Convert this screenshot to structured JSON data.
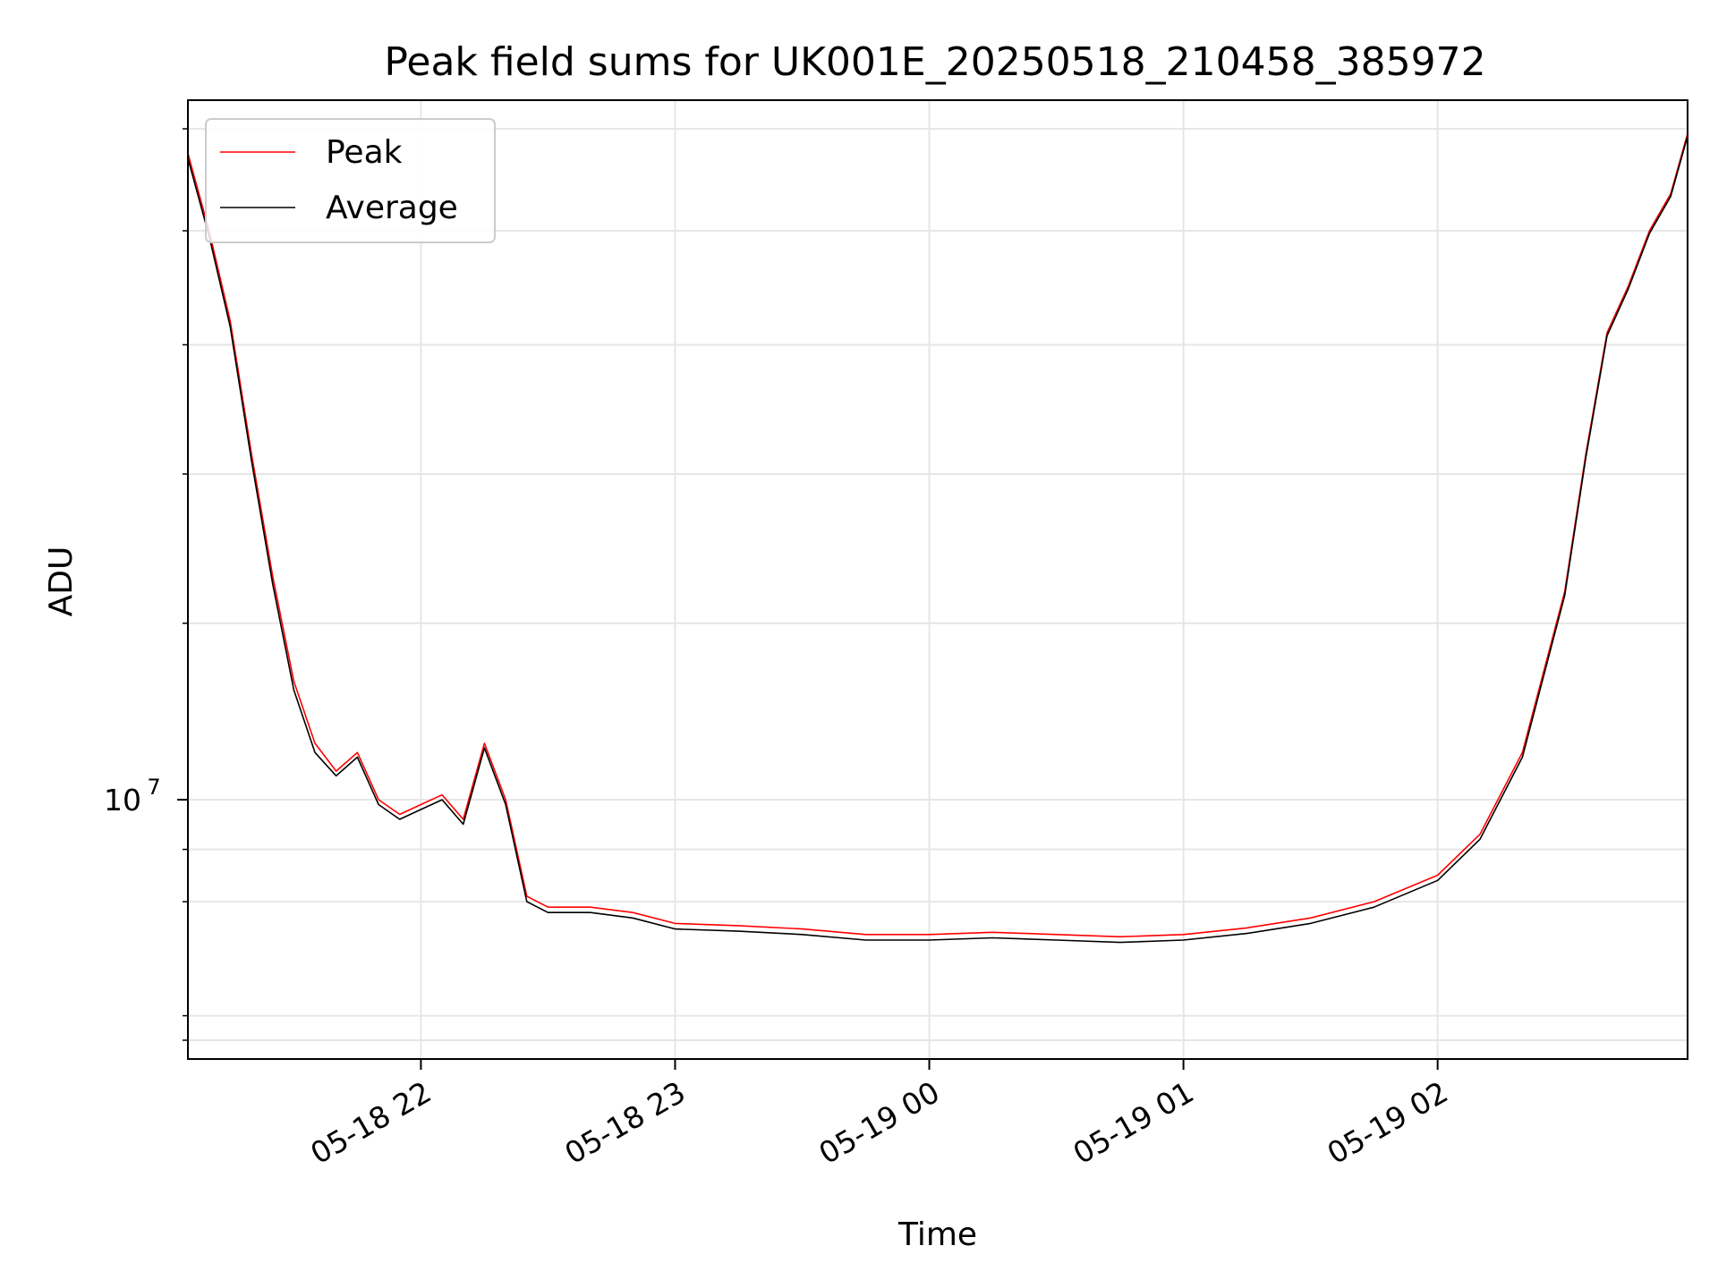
{
  "chart_data": {
    "type": "line",
    "title": "Peak field sums for UK001E_20250518_210458_385972",
    "xlabel": "Time",
    "ylabel": "ADU",
    "y_scale": "log",
    "grid": true,
    "legend_position": "top-left",
    "xlim": [
      "2025-05-18T21:05",
      "2025-05-19T02:59"
    ],
    "ylim": [
      7650000,
      20600000
    ],
    "x_ticks": [
      {
        "value": "2025-05-18T22:00",
        "label": "05-18 22"
      },
      {
        "value": "2025-05-18T23:00",
        "label": "05-18 23"
      },
      {
        "value": "2025-05-19T00:00",
        "label": "05-19 00"
      },
      {
        "value": "2025-05-19T01:00",
        "label": "05-19 01"
      },
      {
        "value": "2025-05-19T02:00",
        "label": "05-19 02"
      }
    ],
    "y_major_ticks": [
      {
        "value": 10000000,
        "base": "10",
        "exp": "7"
      }
    ],
    "y_minor_ticks": [
      7800000,
      8000000,
      9000000,
      9500000,
      12000000,
      14000000,
      16000000,
      18000000,
      20000000
    ],
    "series": [
      {
        "name": "Peak",
        "color": "#ff0000",
        "x": [
          "2025-05-18T21:05",
          "2025-05-18T21:10",
          "2025-05-18T21:15",
          "2025-05-18T21:20",
          "2025-05-18T21:25",
          "2025-05-18T21:30",
          "2025-05-18T21:35",
          "2025-05-18T21:40",
          "2025-05-18T21:45",
          "2025-05-18T21:50",
          "2025-05-18T21:55",
          "2025-05-18T22:00",
          "2025-05-18T22:05",
          "2025-05-18T22:10",
          "2025-05-18T22:15",
          "2025-05-18T22:20",
          "2025-05-18T22:25",
          "2025-05-18T22:30",
          "2025-05-18T22:40",
          "2025-05-18T22:50",
          "2025-05-18T23:00",
          "2025-05-18T23:15",
          "2025-05-18T23:30",
          "2025-05-18T23:45",
          "2025-05-19T00:00",
          "2025-05-19T00:15",
          "2025-05-19T00:30",
          "2025-05-19T00:45",
          "2025-05-19T01:00",
          "2025-05-19T01:15",
          "2025-05-19T01:30",
          "2025-05-19T01:45",
          "2025-05-19T02:00",
          "2025-05-19T02:10",
          "2025-05-19T02:20",
          "2025-05-19T02:30",
          "2025-05-19T02:35",
          "2025-05-19T02:40",
          "2025-05-19T02:45",
          "2025-05-19T02:50",
          "2025-05-19T02:55",
          "2025-05-19T02:59"
        ],
        "values": [
          19500000,
          18000000,
          16400000,
          14300000,
          12600000,
          11300000,
          10600000,
          10300000,
          10500000,
          10000000,
          9850000,
          9950000,
          10050000,
          9800000,
          10600000,
          10000000,
          9050000,
          8950000,
          8950000,
          8900000,
          8800000,
          8780000,
          8750000,
          8700000,
          8700000,
          8720000,
          8700000,
          8680000,
          8700000,
          8760000,
          8850000,
          9000000,
          9250000,
          9650000,
          10500000,
          12400000,
          14300000,
          16200000,
          17000000,
          18000000,
          18700000,
          19900000
        ]
      },
      {
        "name": "Average",
        "color": "#000000",
        "x": [
          "2025-05-18T21:05",
          "2025-05-18T21:10",
          "2025-05-18T21:15",
          "2025-05-18T21:20",
          "2025-05-18T21:25",
          "2025-05-18T21:30",
          "2025-05-18T21:35",
          "2025-05-18T21:40",
          "2025-05-18T21:45",
          "2025-05-18T21:50",
          "2025-05-18T21:55",
          "2025-05-18T22:00",
          "2025-05-18T22:05",
          "2025-05-18T22:10",
          "2025-05-18T22:15",
          "2025-05-18T22:20",
          "2025-05-18T22:25",
          "2025-05-18T22:30",
          "2025-05-18T22:40",
          "2025-05-18T22:50",
          "2025-05-18T23:00",
          "2025-05-18T23:15",
          "2025-05-18T23:30",
          "2025-05-18T23:45",
          "2025-05-19T00:00",
          "2025-05-19T00:15",
          "2025-05-19T00:30",
          "2025-05-19T00:45",
          "2025-05-19T01:00",
          "2025-05-19T01:15",
          "2025-05-19T01:30",
          "2025-05-19T01:45",
          "2025-05-19T02:00",
          "2025-05-19T02:10",
          "2025-05-19T02:20",
          "2025-05-19T02:30",
          "2025-05-19T02:35",
          "2025-05-19T02:40",
          "2025-05-19T02:45",
          "2025-05-19T02:50",
          "2025-05-19T02:55",
          "2025-05-19T02:59"
        ],
        "values": [
          19400000,
          17900000,
          16300000,
          14200000,
          12500000,
          11200000,
          10500000,
          10250000,
          10450000,
          9950000,
          9800000,
          9900000,
          10000000,
          9750000,
          10550000,
          9950000,
          9000000,
          8900000,
          8900000,
          8850000,
          8750000,
          8730000,
          8700000,
          8650000,
          8650000,
          8670000,
          8650000,
          8630000,
          8650000,
          8710000,
          8800000,
          8950000,
          9200000,
          9600000,
          10450000,
          12350000,
          14250000,
          16150000,
          16950000,
          17950000,
          18650000,
          19850000
        ]
      }
    ]
  }
}
